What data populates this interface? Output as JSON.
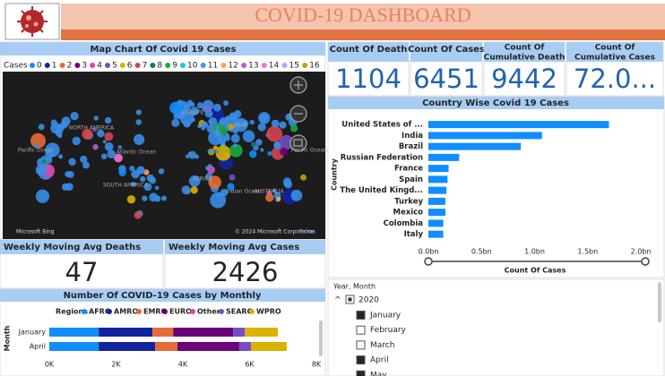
{
  "header": {
    "title": "COVID-19 DASHBOARD"
  },
  "map": {
    "title": "Map Chart Of Covid 19 Cases",
    "legend_title": "Cases",
    "legend": [
      {
        "label": "0",
        "color": "#118dff"
      },
      {
        "label": "1",
        "color": "#12239e"
      },
      {
        "label": "2",
        "color": "#e66c37"
      },
      {
        "label": "3",
        "color": "#6b007b"
      },
      {
        "label": "4",
        "color": "#e044a7"
      },
      {
        "label": "5",
        "color": "#744ec2"
      },
      {
        "label": "6",
        "color": "#d9b300"
      },
      {
        "label": "7",
        "color": "#d64550"
      },
      {
        "label": "8",
        "color": "#197278"
      },
      {
        "label": "9",
        "color": "#1aab40"
      },
      {
        "label": "10",
        "color": "#15c6f4"
      },
      {
        "label": "11",
        "color": "#4092ff"
      },
      {
        "label": "12",
        "color": "#ffa058"
      },
      {
        "label": "13",
        "color": "#be5dc9"
      },
      {
        "label": "14",
        "color": "#f472d0"
      },
      {
        "label": "15",
        "color": "#b5a1ff"
      },
      {
        "label": "16",
        "color": "#c4a200"
      }
    ],
    "labels": [
      "NORTH AMERICA",
      "Pacific Ocean",
      "Atlantic Ocean",
      "SOUTH AMERICA",
      "EUROPE",
      "AFRICA",
      "ASIA",
      "Indian Ocean",
      "AUSTRALIA",
      "Pacific Ocean"
    ],
    "brand": "Microsoft Bing",
    "attribution": "© 2024 Microsoft Corporation",
    "terms": "Terms"
  },
  "cards": [
    {
      "label": "Count Of Death",
      "value": 1104
    },
    {
      "label": "Count Of Cases",
      "value": 6451
    },
    {
      "label": "Count Of Cumulative Death",
      "value": 9442
    },
    {
      "label": "Count Of Cumulative Cases",
      "value": "72.0..."
    }
  ],
  "weekly_cards": [
    {
      "label": "Weekly Moving Avg Deaths",
      "value": 47
    },
    {
      "label": "Weekly Moving Avg Cases",
      "value": 2426
    }
  ],
  "chart_data": [
    {
      "type": "bar",
      "orientation": "horizontal",
      "title": "Country Wise Covid 19 Cases",
      "categories": [
        "United States of ...",
        "India",
        "Brazil",
        "Russian Federation",
        "France",
        "Spain",
        "The United Kingd...",
        "Turkey",
        "Mexico",
        "Colombia",
        "Italy"
      ],
      "values": [
        1.7,
        1.07,
        0.87,
        0.29,
        0.19,
        0.18,
        0.17,
        0.16,
        0.16,
        0.14,
        0.14
      ],
      "color": "#118dff",
      "xlim": [
        0,
        2.0
      ],
      "xticks": [
        {
          "value": 0,
          "label": "0.0bn"
        },
        {
          "value": 0.5,
          "label": "0.5bn"
        },
        {
          "value": 1,
          "label": "1.0bn"
        },
        {
          "value": 1.5,
          "label": "1.5bn"
        },
        {
          "value": 2,
          "label": "2.0bn"
        }
      ],
      "xlabel": "Count Of Cases",
      "ylabel": "Country",
      "grid": false
    },
    {
      "type": "bar",
      "orientation": "horizontal",
      "stacked": true,
      "title": "Number Of COVID-19 Cases by Monthly",
      "legend_title": "Regions",
      "categories": [
        "January",
        "April"
      ],
      "series": [
        {
          "name": "AFRO",
          "color": "#118dff",
          "values": [
            1480,
            1480
          ]
        },
        {
          "name": "AMRO",
          "color": "#12239e",
          "values": [
            1610,
            1690
          ]
        },
        {
          "name": "EMRO",
          "color": "#e66c37",
          "values": [
            620,
            670
          ]
        },
        {
          "name": "EURO",
          "color": "#6b007b",
          "values": [
            1800,
            1850
          ]
        },
        {
          "name": "Other",
          "color": "#e044a7",
          "values": [
            0,
            0
          ]
        },
        {
          "name": "SEARO",
          "color": "#744ec2",
          "values": [
            350,
            350
          ]
        },
        {
          "name": "WPRO",
          "color": "#d9b300",
          "values": [
            990,
            1070
          ]
        }
      ],
      "xlim": [
        0,
        8000
      ],
      "xticks": [
        {
          "value": 0,
          "label": "0K"
        },
        {
          "value": 2000,
          "label": "2K"
        },
        {
          "value": 4000,
          "label": "4K"
        },
        {
          "value": 6000,
          "label": "6K"
        },
        {
          "value": 8000,
          "label": "8K"
        }
      ],
      "ylabel": "Month",
      "grid": false
    }
  ],
  "slicer": {
    "title": "Year, Month",
    "year": "2020",
    "items": [
      {
        "label": "January",
        "checked": true
      },
      {
        "label": "February",
        "checked": false
      },
      {
        "label": "March",
        "checked": false
      },
      {
        "label": "April",
        "checked": true
      },
      {
        "label": "May",
        "checked": true
      }
    ]
  }
}
